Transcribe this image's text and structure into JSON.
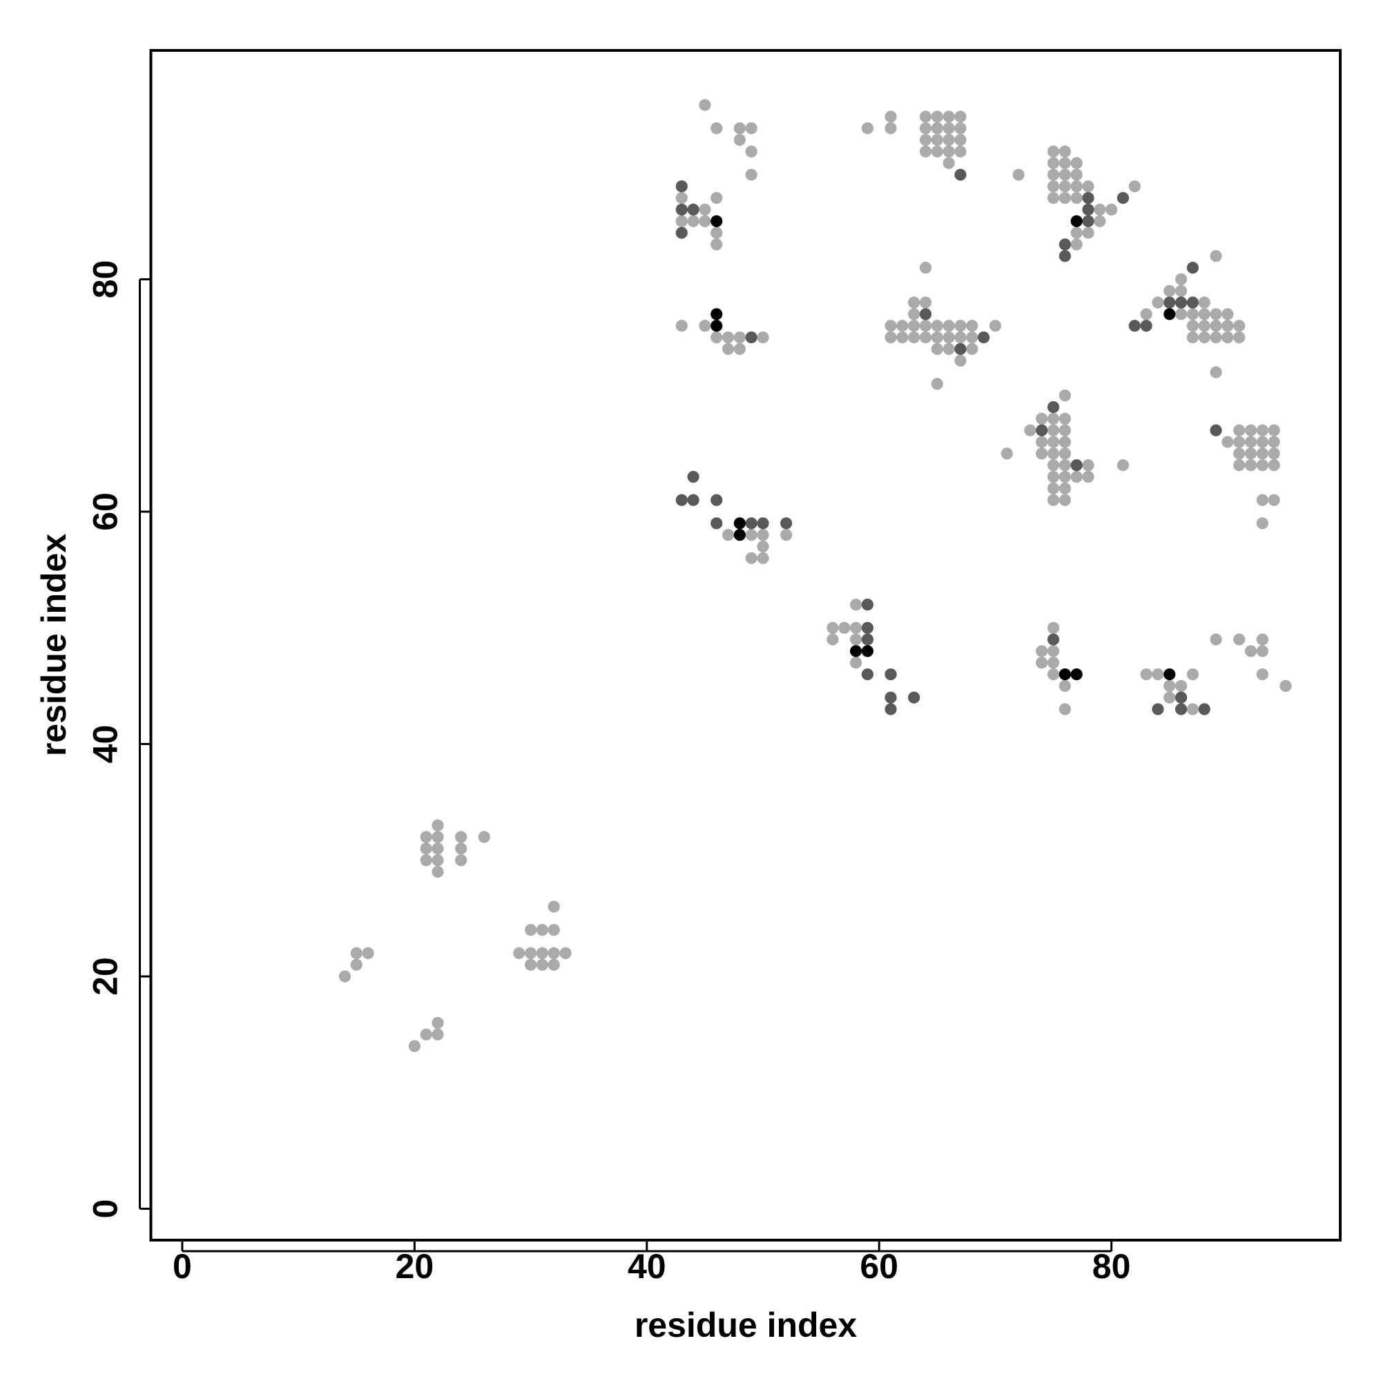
{
  "chart_data": {
    "type": "scatter",
    "xlabel": "residue index",
    "ylabel": "residue index",
    "xlim": [
      -2.7,
      99.7
    ],
    "ylim": [
      -2.7,
      99.7
    ],
    "xticks": [
      0,
      20,
      40,
      60,
      80
    ],
    "yticks": [
      0,
      20,
      40,
      60,
      80
    ],
    "series": [
      {
        "color": "#aaaaaa",
        "x": [
          14,
          15,
          15,
          16,
          20,
          21,
          22,
          22,
          21,
          21,
          21,
          22,
          22,
          22,
          22,
          22,
          24,
          24,
          24,
          26,
          29,
          30,
          30,
          30,
          31,
          31,
          31,
          32,
          32,
          32,
          32,
          33,
          45,
          46,
          48,
          48,
          49,
          49,
          49,
          43,
          43,
          44,
          45,
          45,
          46,
          46,
          46,
          43,
          45,
          46,
          47,
          47,
          48,
          48,
          50,
          47,
          49,
          50,
          50,
          49,
          50,
          52,
          56,
          56,
          57,
          58,
          58,
          58,
          58,
          59,
          61,
          61,
          64,
          64,
          64,
          64,
          65,
          65,
          65,
          65,
          66,
          66,
          66,
          66,
          67,
          67,
          67,
          67,
          66,
          64,
          63,
          64,
          63,
          61,
          61,
          62,
          62,
          63,
          63,
          64,
          64,
          65,
          65,
          65,
          66,
          66,
          66,
          67,
          67,
          67,
          68,
          68,
          68,
          70,
          65,
          72,
          75,
          75,
          75,
          75,
          75,
          76,
          76,
          76,
          76,
          76,
          77,
          77,
          77,
          77,
          77,
          77,
          78,
          78,
          79,
          79,
          80,
          82,
          89,
          86,
          85,
          86,
          84,
          88,
          83,
          86,
          87,
          88,
          89,
          90,
          87,
          88,
          89,
          90,
          91,
          87,
          88,
          89,
          90,
          91,
          89,
          76,
          71,
          73,
          74,
          74,
          74,
          75,
          75,
          75,
          75,
          75,
          75,
          75,
          75,
          76,
          76,
          76,
          76,
          76,
          76,
          76,
          76,
          77,
          78,
          78,
          81,
          90,
          91,
          91,
          91,
          91,
          92,
          92,
          92,
          92,
          93,
          93,
          93,
          93,
          94,
          94,
          94,
          94,
          93,
          94,
          93,
          75,
          74,
          74,
          75,
          75,
          75,
          76,
          76,
          83,
          84,
          85,
          85,
          86,
          87,
          87,
          89,
          91,
          92,
          93,
          93,
          93,
          95
        ],
        "y": [
          20,
          21,
          22,
          22,
          14,
          15,
          15,
          16,
          30,
          31,
          32,
          29,
          30,
          31,
          32,
          33,
          30,
          31,
          32,
          32,
          22,
          21,
          22,
          24,
          21,
          22,
          24,
          21,
          22,
          24,
          26,
          22,
          95,
          93,
          92,
          93,
          91,
          93,
          89,
          87,
          85,
          85,
          85,
          86,
          87,
          84,
          83,
          76,
          76,
          75,
          75,
          74,
          75,
          74,
          75,
          58,
          58,
          58,
          57,
          56,
          56,
          58,
          50,
          49,
          50,
          52,
          50,
          49,
          47,
          93,
          94,
          93,
          91,
          92,
          93,
          94,
          91,
          92,
          93,
          94,
          91,
          92,
          93,
          94,
          91,
          92,
          93,
          94,
          90,
          81,
          78,
          78,
          77,
          76,
          75,
          75,
          76,
          75,
          76,
          75,
          76,
          74,
          75,
          76,
          74,
          75,
          76,
          73,
          75,
          76,
          74,
          75,
          76,
          76,
          71,
          89,
          91,
          90,
          89,
          88,
          87,
          91,
          90,
          89,
          88,
          87,
          90,
          89,
          88,
          87,
          84,
          83,
          88,
          84,
          86,
          85,
          86,
          88,
          82,
          80,
          79,
          79,
          78,
          78,
          77,
          77,
          77,
          77,
          77,
          77,
          76,
          76,
          76,
          76,
          76,
          75,
          75,
          75,
          75,
          75,
          72,
          70,
          65,
          67,
          68,
          66,
          65,
          68,
          67,
          66,
          65,
          64,
          63,
          62,
          61,
          68,
          67,
          66,
          65,
          64,
          63,
          62,
          61,
          63,
          64,
          63,
          64,
          66,
          67,
          66,
          65,
          64,
          67,
          66,
          65,
          64,
          67,
          66,
          65,
          64,
          67,
          66,
          65,
          64,
          61,
          61,
          59,
          50,
          48,
          47,
          48,
          47,
          46,
          45,
          43,
          46,
          46,
          45,
          44,
          45,
          46,
          43,
          49,
          49,
          48,
          49,
          48,
          46,
          45
        ]
      },
      {
        "color": "#595959",
        "x": [
          43,
          43,
          44,
          43,
          49,
          43,
          44,
          44,
          46,
          46,
          49,
          50,
          52,
          59,
          59,
          59,
          59,
          61,
          61,
          61,
          63,
          67,
          64,
          67,
          69,
          78,
          78,
          78,
          76,
          76,
          81,
          87,
          82,
          83,
          85,
          86,
          87,
          75,
          74,
          77,
          89,
          75,
          84,
          86,
          86,
          88
        ],
        "y": [
          88,
          86,
          86,
          84,
          75,
          61,
          61,
          63,
          61,
          59,
          59,
          59,
          59,
          52,
          50,
          49,
          46,
          46,
          44,
          43,
          44,
          89,
          77,
          74,
          75,
          87,
          86,
          85,
          83,
          82,
          87,
          81,
          76,
          76,
          78,
          78,
          78,
          69,
          67,
          64,
          67,
          49,
          43,
          44,
          43,
          43
        ]
      },
      {
        "color": "#000000",
        "x": [
          46,
          46,
          46,
          48,
          48,
          58,
          59,
          77,
          85,
          76,
          77,
          85
        ],
        "y": [
          85,
          77,
          76,
          59,
          58,
          48,
          48,
          85,
          77,
          46,
          46,
          46
        ]
      }
    ]
  }
}
